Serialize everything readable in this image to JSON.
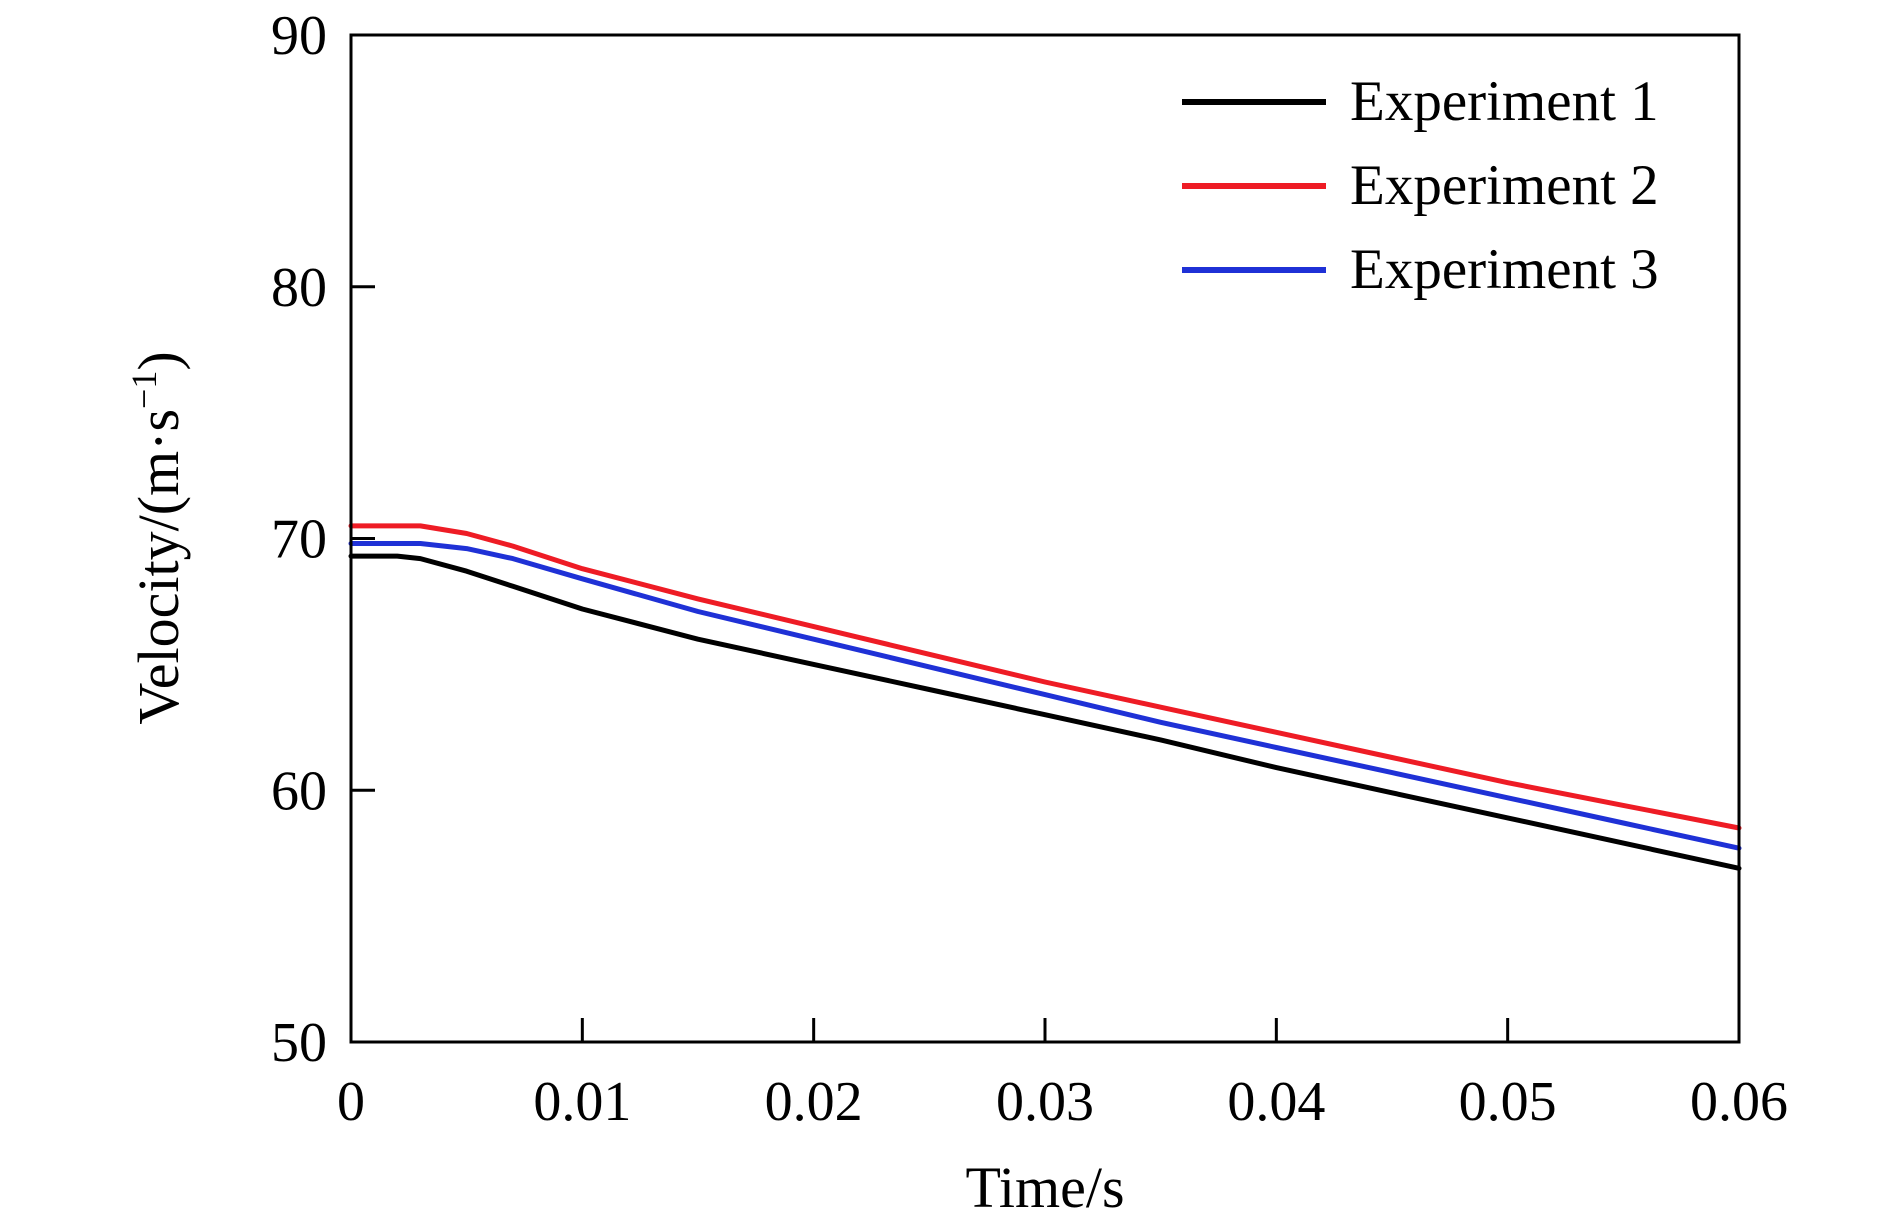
{
  "chart_data": {
    "type": "line",
    "title": "",
    "xlabel": "Time/s",
    "ylabel_main": "Velocity/(m·s",
    "ylabel_sup": "−1",
    "ylabel_close": ")",
    "xlim": [
      0,
      0.06
    ],
    "ylim": [
      50,
      90
    ],
    "xticks": [
      0,
      0.01,
      0.02,
      0.03,
      0.04,
      0.05,
      0.06
    ],
    "xtick_labels": [
      "0",
      "0.01",
      "0.02",
      "0.03",
      "0.04",
      "0.05",
      "0.06"
    ],
    "yticks": [
      50,
      60,
      70,
      80,
      90
    ],
    "ytick_labels": [
      "50",
      "60",
      "70",
      "80",
      "90"
    ],
    "grid": false,
    "legend_position": "top-right",
    "x": [
      0,
      0.002,
      0.003,
      0.005,
      0.007,
      0.01,
      0.015,
      0.02,
      0.025,
      0.03,
      0.035,
      0.04,
      0.045,
      0.05,
      0.055,
      0.06
    ],
    "series": [
      {
        "name": "Experiment 1",
        "color": "#000000",
        "values": [
          69.3,
          69.3,
          69.2,
          68.7,
          68.1,
          67.2,
          66.0,
          65.0,
          64.0,
          63.0,
          62.0,
          60.9,
          59.9,
          58.9,
          57.9,
          56.9
        ]
      },
      {
        "name": "Experiment 2",
        "color": "#ee1c25",
        "values": [
          70.5,
          70.5,
          70.5,
          70.2,
          69.7,
          68.8,
          67.6,
          66.5,
          65.4,
          64.3,
          63.3,
          62.3,
          61.3,
          60.3,
          59.4,
          58.5
        ]
      },
      {
        "name": "Experiment 3",
        "color": "#1f31d6",
        "values": [
          69.8,
          69.8,
          69.8,
          69.6,
          69.2,
          68.4,
          67.1,
          66.0,
          64.9,
          63.8,
          62.7,
          61.7,
          60.7,
          59.7,
          58.7,
          57.7
        ]
      }
    ]
  }
}
